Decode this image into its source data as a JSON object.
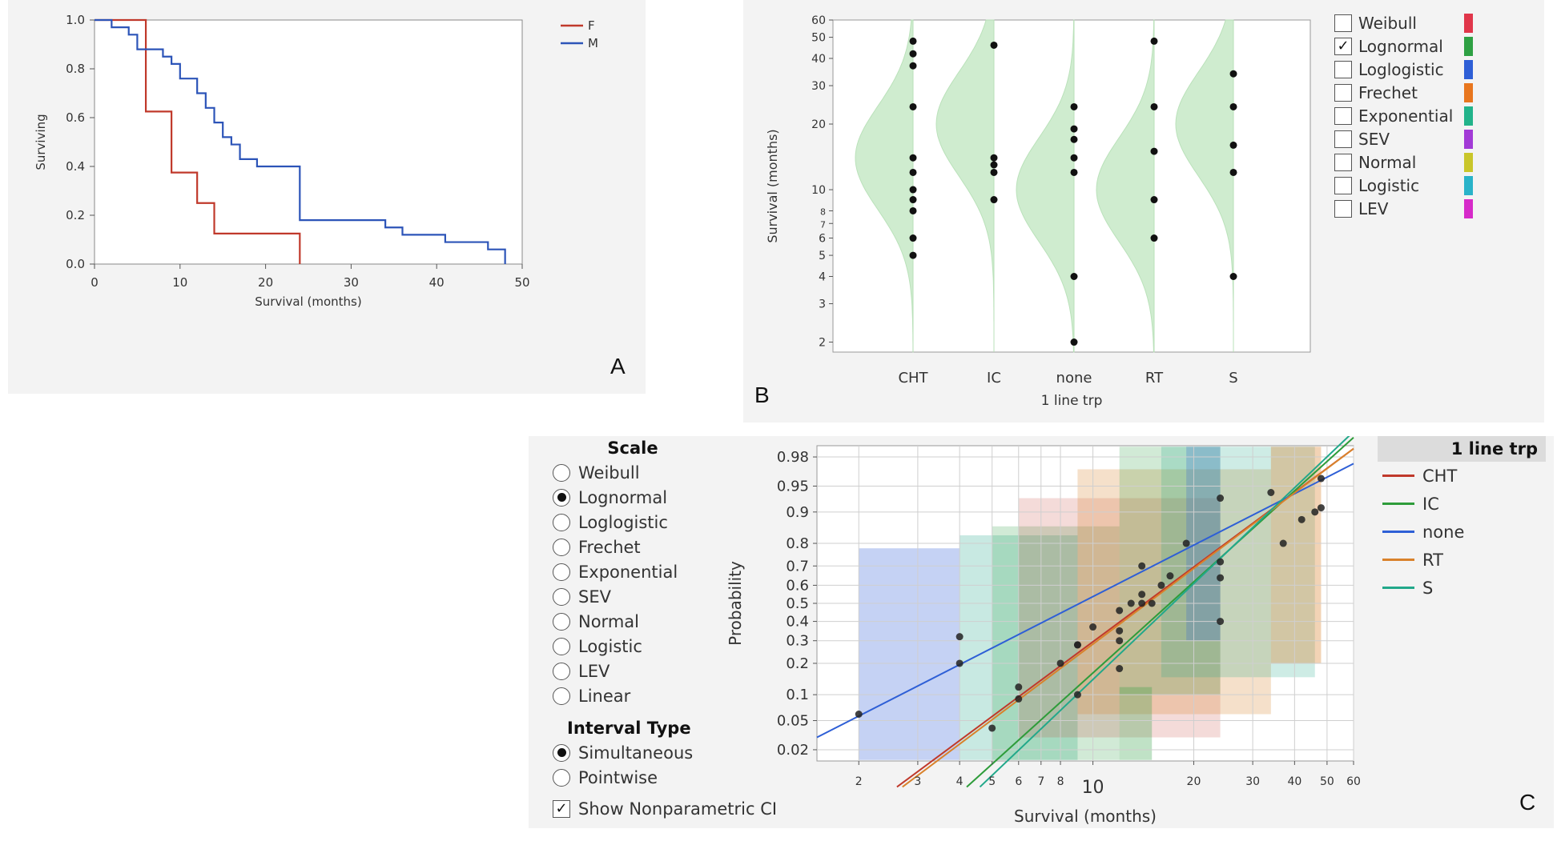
{
  "panelA": {
    "letter": "A",
    "chart_data": {
      "type": "line",
      "step": true,
      "xlabel": "Survival (months)",
      "ylabel": "Surviving",
      "xlim": [
        0,
        50
      ],
      "ylim": [
        0,
        1.0
      ],
      "xticks": [
        "0",
        "10",
        "20",
        "30",
        "40",
        "50"
      ],
      "yticks": [
        "0.0",
        "0.2",
        "0.4",
        "0.6",
        "0.8",
        "1.0"
      ],
      "series": [
        {
          "name": "F",
          "color": "#c0392b",
          "x": [
            0,
            6,
            6,
            9,
            9,
            12,
            12,
            14,
            14,
            24,
            24
          ],
          "y": [
            1.0,
            1.0,
            0.625,
            0.625,
            0.375,
            0.375,
            0.25,
            0.25,
            0.125,
            0.125,
            0.0
          ]
        },
        {
          "name": "M",
          "color": "#2c54b8",
          "x": [
            0,
            2,
            2,
            4,
            4,
            5,
            5,
            8,
            8,
            9,
            9,
            10,
            10,
            12,
            12,
            13,
            13,
            14,
            14,
            15,
            15,
            16,
            16,
            17,
            17,
            19,
            19,
            24,
            24,
            34,
            34,
            36,
            36,
            41,
            41,
            46,
            46,
            48,
            48
          ],
          "y": [
            1.0,
            1.0,
            0.97,
            0.97,
            0.94,
            0.94,
            0.88,
            0.88,
            0.85,
            0.85,
            0.82,
            0.82,
            0.76,
            0.76,
            0.7,
            0.7,
            0.64,
            0.64,
            0.58,
            0.58,
            0.52,
            0.52,
            0.49,
            0.49,
            0.43,
            0.43,
            0.4,
            0.4,
            0.18,
            0.18,
            0.15,
            0.15,
            0.12,
            0.12,
            0.09,
            0.09,
            0.06,
            0.06,
            0.0
          ]
        }
      ],
      "legend": [
        "F",
        "M"
      ]
    }
  },
  "panelB": {
    "letter": "B",
    "chart_data": {
      "type": "scatter",
      "xlabel": "1 line trp",
      "ylabel": "Survival (months)",
      "yscale": "log",
      "ylim": [
        1.8,
        60
      ],
      "yticks": [
        "2",
        "3",
        "4",
        "5",
        "6",
        "7",
        "8",
        "10",
        "20",
        "30",
        "40",
        "50",
        "60"
      ],
      "categories": [
        "CHT",
        "IC",
        "none",
        "RT",
        "S"
      ],
      "points": [
        [
          5,
          6,
          8,
          9,
          10,
          12,
          14,
          24,
          37,
          42,
          48
        ],
        [
          9,
          12,
          13,
          14,
          46
        ],
        [
          2,
          4,
          12,
          14,
          17,
          19,
          24
        ],
        [
          6,
          9,
          15,
          24,
          48
        ],
        [
          4,
          12,
          16,
          24,
          34
        ]
      ],
      "density_peak": [
        14,
        20,
        10,
        10,
        20
      ]
    },
    "distributions": [
      {
        "label": "Weibull",
        "checked": false,
        "color": "#e0364a"
      },
      {
        "label": "Lognormal",
        "checked": true,
        "color": "#2ea043"
      },
      {
        "label": "Loglogistic",
        "checked": false,
        "color": "#2e5fd6"
      },
      {
        "label": "Frechet",
        "checked": false,
        "color": "#e8761e"
      },
      {
        "label": "Exponential",
        "checked": false,
        "color": "#22b38a"
      },
      {
        "label": "SEV",
        "checked": false,
        "color": "#a23ad6"
      },
      {
        "label": "Normal",
        "checked": false,
        "color": "#c9c62a"
      },
      {
        "label": "Logistic",
        "checked": false,
        "color": "#29b3c9"
      },
      {
        "label": "LEV",
        "checked": false,
        "color": "#d62ac9"
      }
    ],
    "check_glyph": "✓"
  },
  "panelC": {
    "letter": "C",
    "scale_title": "Scale",
    "scale_options": [
      {
        "label": "Weibull",
        "selected": false
      },
      {
        "label": "Lognormal",
        "selected": true
      },
      {
        "label": "Loglogistic",
        "selected": false
      },
      {
        "label": "Frechet",
        "selected": false
      },
      {
        "label": "Exponential",
        "selected": false
      },
      {
        "label": "SEV",
        "selected": false
      },
      {
        "label": "Normal",
        "selected": false
      },
      {
        "label": "Logistic",
        "selected": false
      },
      {
        "label": "LEV",
        "selected": false
      },
      {
        "label": "Linear",
        "selected": false
      }
    ],
    "interval_title": "Interval Type",
    "interval_options": [
      {
        "label": "Simultaneous",
        "selected": true
      },
      {
        "label": "Pointwise",
        "selected": false
      }
    ],
    "show_ci_label": "Show Nonparametric CI",
    "show_ci_checked": true,
    "check_glyph": "✓",
    "legend_title": "1 line trp",
    "legend": [
      {
        "label": "CHT",
        "color": "#c0392b"
      },
      {
        "label": "IC",
        "color": "#2e9c3a"
      },
      {
        "label": "none",
        "color": "#2e5fd6"
      },
      {
        "label": "RT",
        "color": "#d9822b"
      },
      {
        "label": "S",
        "color": "#22a88a"
      }
    ],
    "chart_data": {
      "type": "scatter",
      "xlabel": "Survival (months)",
      "ylabel": "Probability",
      "xscale": "log",
      "xlim": [
        1.5,
        60
      ],
      "xticks": [
        "2",
        "3",
        "4",
        "5",
        "6",
        "7",
        "8",
        "10",
        "20",
        "30",
        "40",
        "50",
        "60"
      ],
      "yscale": "probit",
      "yticks": [
        "0.02",
        "0.05",
        "0.1",
        "0.2",
        "0.3",
        "0.4",
        "0.5",
        "0.6",
        "0.7",
        "0.8",
        "0.9",
        "0.95",
        "0.98"
      ],
      "points": {
        "CHT": [
          [
            5,
            0.04
          ],
          [
            6,
            0.12
          ],
          [
            8,
            0.2
          ],
          [
            9,
            0.28
          ],
          [
            10,
            0.37
          ],
          [
            12,
            0.46
          ],
          [
            14,
            0.55
          ],
          [
            24,
            0.64
          ],
          [
            37,
            0.8
          ],
          [
            42,
            0.88
          ],
          [
            48,
            0.96
          ]
        ],
        "IC": [
          [
            9,
            0.1
          ],
          [
            12,
            0.3
          ],
          [
            13,
            0.5
          ],
          [
            14,
            0.7
          ],
          [
            46,
            0.9
          ]
        ],
        "none": [
          [
            2,
            0.06
          ],
          [
            4,
            0.2
          ],
          [
            12,
            0.35
          ],
          [
            14,
            0.5
          ],
          [
            17,
            0.65
          ],
          [
            19,
            0.8
          ],
          [
            24,
            0.93
          ]
        ],
        "RT": [
          [
            6,
            0.09
          ],
          [
            9,
            0.28
          ],
          [
            15,
            0.5
          ],
          [
            24,
            0.72
          ],
          [
            48,
            0.91
          ]
        ],
        "S": [
          [
            4,
            0.32
          ],
          [
            12,
            0.18
          ],
          [
            16,
            0.6
          ],
          [
            24,
            0.4
          ],
          [
            34,
            0.94
          ]
        ]
      },
      "fit_lines": {
        "CHT": [
          [
            2.6,
            0.005
          ],
          [
            60,
            0.985
          ]
        ],
        "IC": [
          [
            4.2,
            0.005
          ],
          [
            60,
            0.99
          ]
        ],
        "none": [
          [
            1.5,
            0.03
          ],
          [
            60,
            0.975
          ]
        ],
        "RT": [
          [
            2.7,
            0.005
          ],
          [
            60,
            0.985
          ]
        ],
        "S": [
          [
            4.6,
            0.005
          ],
          [
            60,
            0.992
          ]
        ]
      }
    }
  }
}
